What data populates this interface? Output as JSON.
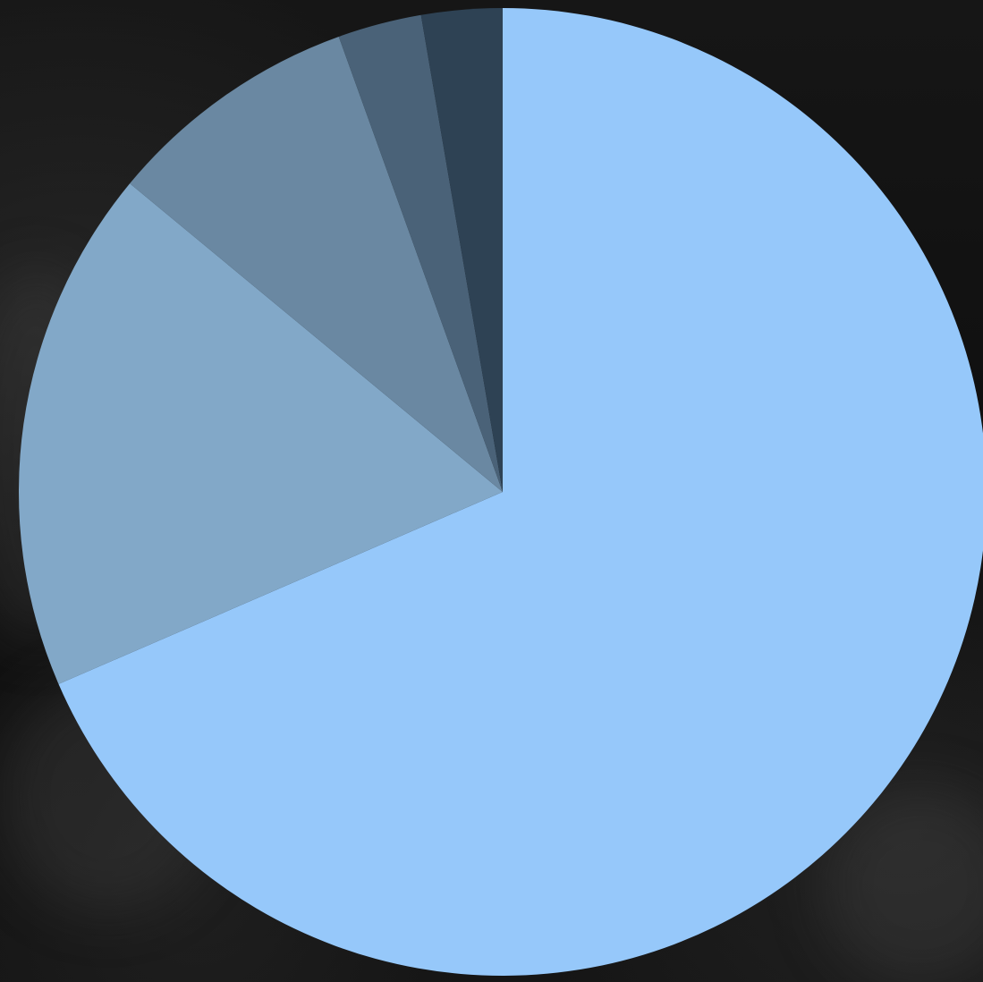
{
  "chart_data": {
    "type": "pie",
    "title": "",
    "start_angle_deg": 0,
    "direction": "clockwise",
    "legend": "none",
    "slices": [
      {
        "value": 68.5,
        "color": "#96C8FA"
      },
      {
        "value": 17.5,
        "color": "#82A8C8"
      },
      {
        "value": 8.5,
        "color": "#6A88A2"
      },
      {
        "value": 2.8,
        "color": "#4A6278"
      },
      {
        "value": 2.7,
        "color": "#2E4254"
      }
    ]
  }
}
